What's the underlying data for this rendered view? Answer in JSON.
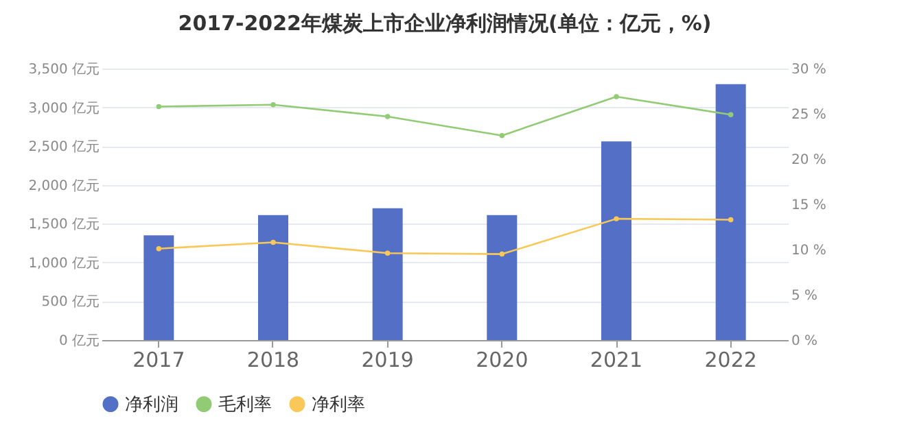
{
  "chart_data": {
    "type": "bar",
    "title": "2017-2022年煤炭上市企业净利润情况(单位：亿元，%)",
    "categories": [
      "2017",
      "2018",
      "2019",
      "2020",
      "2021",
      "2022"
    ],
    "series": [
      {
        "name": "净利润",
        "color": "#5470c6",
        "values": [
          1350,
          1610,
          1700,
          1610,
          2560,
          3300
        ]
      },
      {
        "name": "毛利率",
        "type": "line",
        "axis": "y2",
        "color": "#91cc75",
        "values": [
          25.8,
          26.0,
          24.7,
          22.6,
          26.9,
          24.9
        ]
      },
      {
        "name": "净利率",
        "type": "line",
        "axis": "y2",
        "color": "#fac858",
        "values": [
          10.1,
          10.8,
          9.6,
          9.5,
          13.4,
          13.3
        ]
      }
    ],
    "ylim": [
      0,
      3500
    ],
    "yticks": [
      {
        "value": 0,
        "label": "0 亿元"
      },
      {
        "value": 500,
        "label": "500 亿元"
      },
      {
        "value": 1000,
        "label": "1,000 亿元"
      },
      {
        "value": 1500,
        "label": "1,500 亿元"
      },
      {
        "value": 2000,
        "label": "2,000 亿元"
      },
      {
        "value": 2500,
        "label": "2,500 亿元"
      },
      {
        "value": 3000,
        "label": "3,000 亿元"
      },
      {
        "value": 3500,
        "label": "3,500 亿元"
      }
    ],
    "y2lim": [
      0,
      30
    ],
    "y2ticks": [
      {
        "value": 0,
        "label": "0 %"
      },
      {
        "value": 5,
        "label": "5 %"
      },
      {
        "value": 10,
        "label": "10 %"
      },
      {
        "value": 15,
        "label": "15 %"
      },
      {
        "value": 20,
        "label": "20 %"
      },
      {
        "value": 25,
        "label": "25 %"
      },
      {
        "value": 30,
        "label": "30 %"
      }
    ],
    "grid": "y",
    "legend": "bottom",
    "marker": "circle",
    "line_style": "solid"
  }
}
